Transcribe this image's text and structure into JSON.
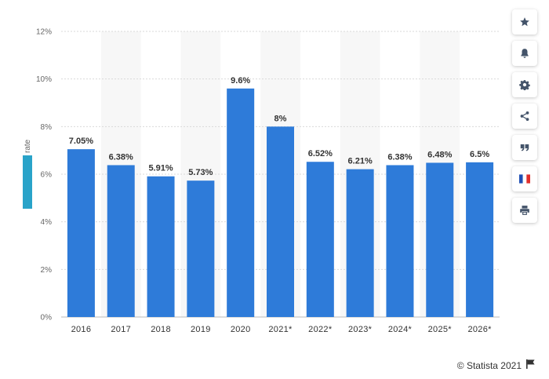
{
  "chart_data": {
    "type": "bar",
    "title": "",
    "xlabel": "",
    "ylabel": "rate",
    "ylim": [
      0,
      12
    ],
    "y_tick_labels": [
      "0%",
      "2%",
      "4%",
      "6%",
      "8%",
      "10%",
      "12%"
    ],
    "grid": true,
    "categories": [
      "2016",
      "2017",
      "2018",
      "2019",
      "2020",
      "2021*",
      "2022*",
      "2023*",
      "2024*",
      "2025*",
      "2026*"
    ],
    "values": [
      7.05,
      6.38,
      5.91,
      5.73,
      9.6,
      8,
      6.52,
      6.21,
      6.38,
      6.48,
      6.5
    ],
    "data_labels": [
      "7.05%",
      "6.38%",
      "5.91%",
      "5.73%",
      "9.6%",
      "8%",
      "6.52%",
      "6.21%",
      "6.38%",
      "6.48%",
      "6.5%"
    ],
    "bar_color": "#2e7bd9",
    "alt_band_color": "#f7f7f7",
    "grid_color": "#d9d9d9",
    "ylabel_tag_color": "#29a3c9"
  },
  "toolbar": {
    "buttons": [
      "star-icon",
      "bell-icon",
      "gear-icon",
      "share-icon",
      "quote-icon",
      "french-flag-icon",
      "print-icon"
    ]
  },
  "footer": {
    "copyright": "© Statista 2021"
  }
}
